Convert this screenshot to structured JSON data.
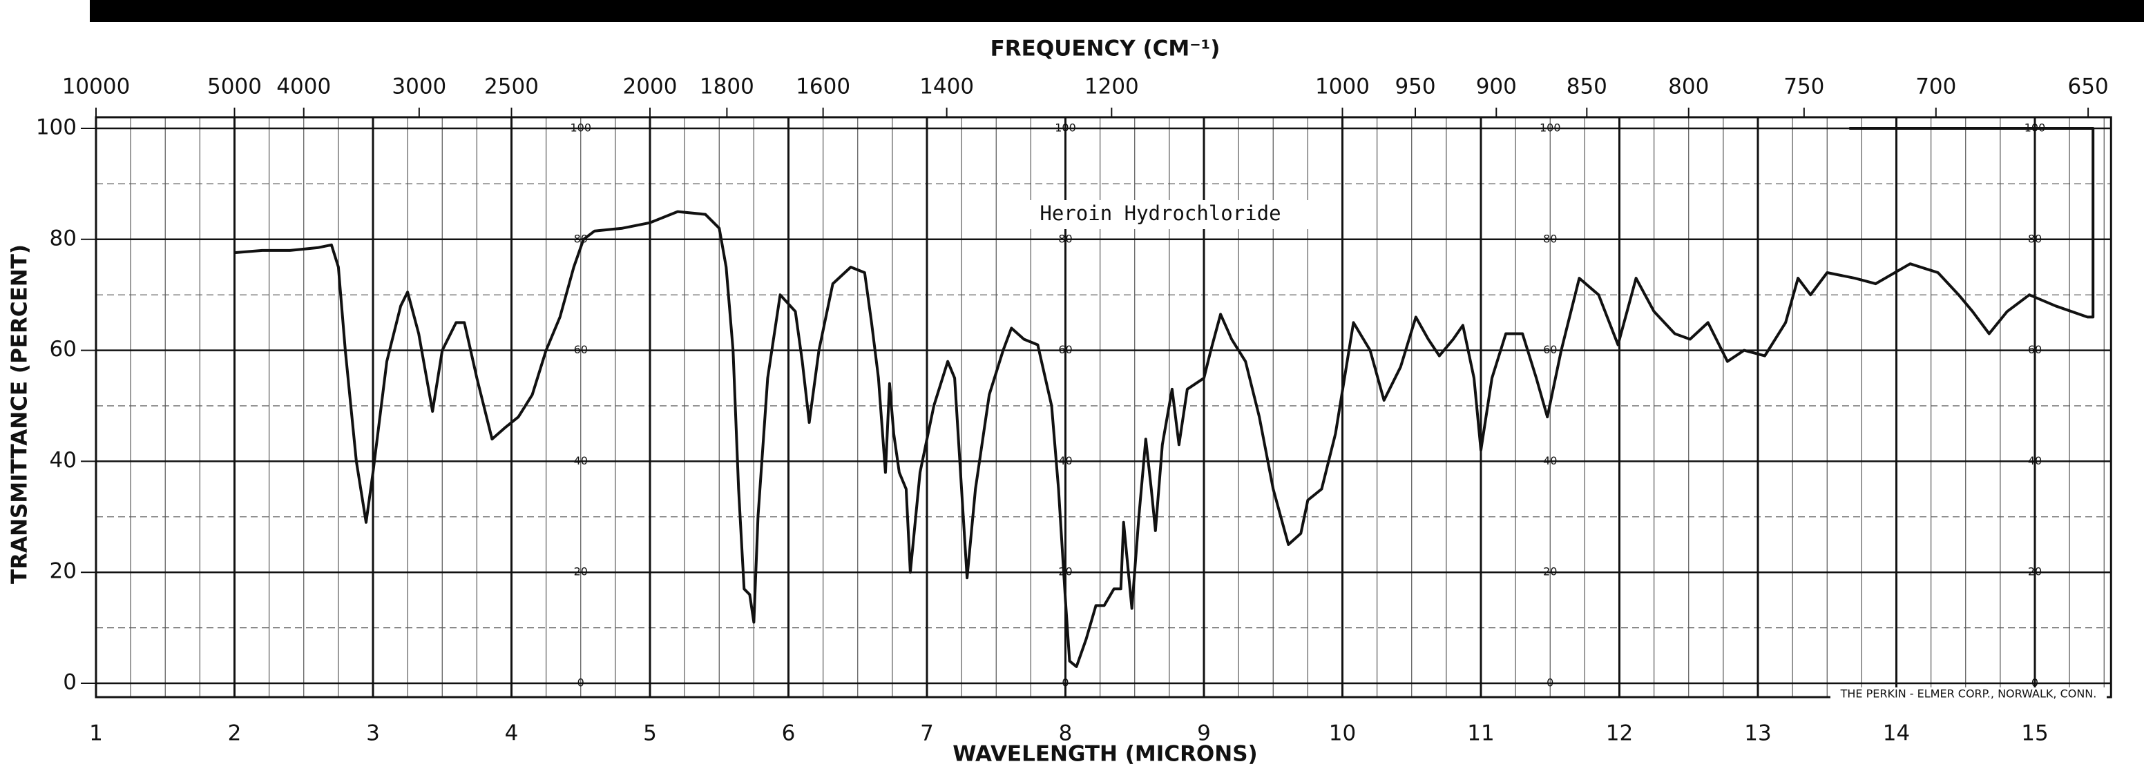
{
  "chart_data": {
    "type": "line",
    "title": "FREQUENCY (CM⁻¹)",
    "x_label": "WAVELENGTH (MICRONS)",
    "y_label": "TRANSMITTANCE (PERCENT)",
    "annotation": "Heroin Hydrochloride",
    "footnote": "THE PERKIN - ELMER CORP., NORWALK, CONN.",
    "xlim": [
      1,
      15.55
    ],
    "ylim": [
      -2.5,
      102
    ],
    "xticks": [
      1,
      2,
      3,
      4,
      5,
      6,
      7,
      8,
      9,
      10,
      11,
      12,
      13,
      14,
      15
    ],
    "yticks": [
      0,
      20,
      40,
      60,
      80,
      100
    ],
    "top_ticks": [
      10000,
      5000,
      4000,
      3000,
      2500,
      2000,
      1800,
      1600,
      1400,
      1200,
      1000,
      950,
      900,
      850,
      800,
      750,
      700,
      650
    ],
    "grid": true,
    "x": [
      2.0,
      2.2,
      2.4,
      2.6,
      2.7,
      2.75,
      2.8,
      2.88,
      2.95,
      3.0,
      3.1,
      3.2,
      3.25,
      3.33,
      3.43,
      3.5,
      3.6,
      3.66,
      3.75,
      3.86,
      3.95,
      4.05,
      4.15,
      4.25,
      4.35,
      4.45,
      4.52,
      4.6,
      4.8,
      5.0,
      5.2,
      5.4,
      5.5,
      5.55,
      5.6,
      5.64,
      5.68,
      5.72,
      5.75,
      5.78,
      5.85,
      5.94,
      6.05,
      6.1,
      6.15,
      6.22,
      6.32,
      6.45,
      6.55,
      6.6,
      6.65,
      6.7,
      6.73,
      6.76,
      6.8,
      6.85,
      6.88,
      6.95,
      7.05,
      7.15,
      7.2,
      7.25,
      7.29,
      7.35,
      7.45,
      7.55,
      7.61,
      7.7,
      7.8,
      7.9,
      7.95,
      8.0,
      8.03,
      8.08,
      8.15,
      8.22,
      8.28,
      8.35,
      8.4,
      8.42,
      8.48,
      8.53,
      8.58,
      8.62,
      8.65,
      8.7,
      8.77,
      8.82,
      8.88,
      9.0,
      9.05,
      9.12,
      9.2,
      9.3,
      9.4,
      9.5,
      9.61,
      9.7,
      9.75,
      9.85,
      9.95,
      10.08,
      10.2,
      10.3,
      10.42,
      10.53,
      10.62,
      10.7,
      10.8,
      10.87,
      10.95,
      11.0,
      11.08,
      11.18,
      11.3,
      11.4,
      11.48,
      11.58,
      11.71,
      11.85,
      11.99,
      12.12,
      12.25,
      12.4,
      12.51,
      12.64,
      12.78,
      12.9,
      13.05,
      13.2,
      13.29,
      13.38,
      13.5,
      13.7,
      13.85,
      14.1,
      14.3,
      14.45,
      14.55,
      14.67,
      14.8,
      14.96,
      15.15,
      15.38,
      15.42,
      15.42,
      13.66
    ],
    "series": [
      {
        "name": "Heroin Hydrochloride",
        "color": "#111111",
        "values": [
          77.6,
          78,
          78,
          78.5,
          79,
          75,
          60,
          40,
          29,
          38,
          58,
          68,
          70.5,
          63,
          49,
          60,
          65,
          65,
          55,
          44,
          46,
          48,
          52,
          60,
          66,
          75,
          80,
          81.5,
          82,
          83,
          85,
          84.5,
          82,
          75,
          60,
          35,
          17,
          16,
          11,
          30,
          55,
          70,
          67,
          58,
          47,
          60,
          72,
          75,
          74,
          65,
          55,
          38,
          54,
          45,
          38,
          35,
          20,
          38,
          50,
          58,
          55,
          35,
          19,
          35,
          52,
          60,
          64,
          62,
          61,
          50,
          35,
          15,
          4,
          3,
          8,
          14,
          14,
          17,
          17,
          29,
          13.5,
          30,
          44,
          35,
          27.5,
          43,
          53,
          43,
          53,
          55,
          60,
          66.5,
          62,
          58,
          48,
          35,
          25,
          27,
          33,
          35,
          45,
          65,
          60,
          51,
          57,
          66,
          62,
          59,
          62,
          64.5,
          55,
          42,
          55,
          63,
          63,
          55,
          48,
          60,
          73,
          70,
          61,
          73,
          67,
          63,
          62,
          65,
          58,
          60,
          59,
          65,
          73,
          70,
          74,
          73,
          72,
          75.6,
          74,
          70,
          67,
          63,
          67,
          70,
          68,
          66,
          66,
          100,
          100
        ]
      }
    ]
  }
}
